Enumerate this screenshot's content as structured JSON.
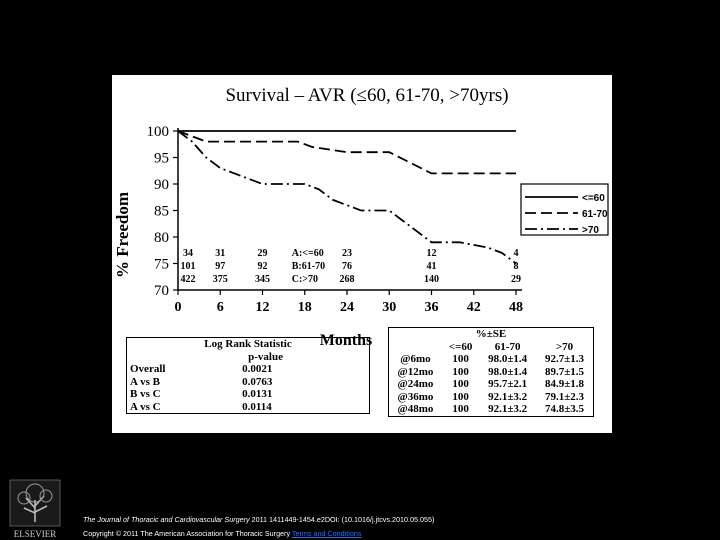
{
  "chart_data": {
    "type": "line",
    "title": "Survival – AVR (≤60, 61-70, >70yrs)",
    "xlabel": "Months",
    "ylabel": "% Freedom",
    "xlim": [
      0,
      48
    ],
    "ylim": [
      70,
      100
    ],
    "x_ticks": [
      "0",
      "6",
      "12",
      "18",
      "24",
      "30",
      "36",
      "42",
      "48"
    ],
    "y_ticks": [
      "100",
      "95",
      "90",
      "85",
      "80",
      "75",
      "70"
    ],
    "legend_position": "right",
    "series": [
      {
        "name": "<=60",
        "style": "solid",
        "x": [
          0,
          48
        ],
        "y": [
          100,
          100
        ]
      },
      {
        "name": "61-70",
        "style": "dashed",
        "x": [
          0,
          2,
          4,
          10,
          17,
          19,
          24,
          30,
          33,
          36,
          48
        ],
        "y": [
          100,
          99,
          98,
          98,
          98,
          97,
          96,
          96,
          94,
          92,
          92
        ]
      },
      {
        "name": ">70",
        "style": "dash-dot",
        "x": [
          0,
          2,
          4,
          6,
          10,
          12,
          18,
          20,
          22,
          24,
          26,
          28,
          30,
          32,
          34,
          36,
          40,
          44,
          46,
          48
        ],
        "y": [
          100,
          98,
          95,
          93,
          91,
          90,
          90,
          89,
          87,
          86,
          85,
          85,
          85,
          83,
          81,
          79,
          79,
          78,
          77,
          75
        ]
      }
    ],
    "at_risk": {
      "x": [
        0,
        6,
        12,
        18,
        24,
        36,
        48
      ],
      "labels": [
        "A:<=60",
        "B:61-70",
        "C:>70"
      ],
      "rows": [
        [
          "34",
          "31",
          "29",
          "",
          "23",
          "12",
          "4"
        ],
        [
          "101",
          "97",
          "92",
          "",
          "76",
          "41",
          "8"
        ],
        [
          "422",
          "375",
          "345",
          "",
          "268",
          "140",
          "29"
        ]
      ]
    }
  },
  "log_rank": {
    "header1": "Log Rank Statistic",
    "header2": "p-value",
    "rows": [
      {
        "label": "Overall",
        "value": "0.0021"
      },
      {
        "label": "A vs B",
        "value": "0.0763"
      },
      {
        "label": "B vs C",
        "value": "0.0131"
      },
      {
        "label": "A vs C",
        "value": "0.0114"
      }
    ]
  },
  "km_table": {
    "header_top": "%±SE",
    "headers": [
      "",
      "<=60",
      "61-70",
      ">70"
    ],
    "rows": [
      [
        "@6mo",
        "100",
        "98.0±1.4",
        "92.7±1.3"
      ],
      [
        "@12mo",
        "100",
        "98.0±1.4",
        "89.7±1.5"
      ],
      [
        "@24mo",
        "100",
        "95.7±2.1",
        "84.9±1.8"
      ],
      [
        "@36mo",
        "100",
        "92.1±3.2",
        "79.1±2.3"
      ],
      [
        "@48mo",
        "100",
        "92.1±3.2",
        "74.8±3.5"
      ]
    ]
  },
  "footer": {
    "journal": "The Journal of Thoracic and Cardiovascular Surgery",
    "citation": " 2011 1411449-1454.e2DOI: (10.1016/j.jtcvs.2010.05.055)",
    "copyright": "Copyright © 2011 The American Association for Thoracic Surgery ",
    "terms_link": "Terms and Conditions",
    "publisher_logo_text": "ELSEVIER"
  }
}
